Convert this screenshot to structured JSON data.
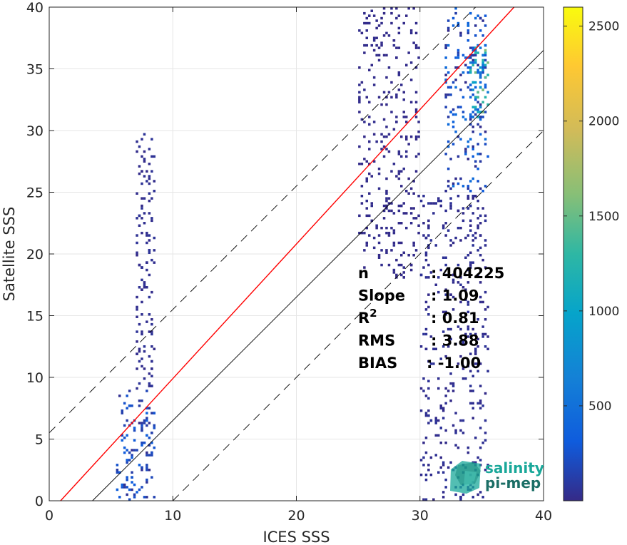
{
  "chart_data": {
    "type": "heatmap",
    "title": "",
    "xlabel": "ICES SSS",
    "ylabel": "Satellite SSS",
    "xlim": [
      0,
      40
    ],
    "ylim": [
      0,
      40
    ],
    "xticks": [
      "0",
      "10",
      "20",
      "30",
      "40"
    ],
    "yticks": [
      "0",
      "5",
      "10",
      "15",
      "20",
      "25",
      "30",
      "35",
      "40"
    ],
    "grid": true,
    "colorbar": {
      "colormap": "parula",
      "min": 0,
      "max": 2600,
      "ticks": [
        "500",
        "1000",
        "1500",
        "2000",
        "2500"
      ],
      "tick_values": [
        500,
        1000,
        1500,
        2000,
        2500
      ]
    },
    "density_clusters": [
      {
        "x_range": [
          5.5,
          8.5
        ],
        "y_range": [
          0,
          9
        ],
        "peak_count": 350
      },
      {
        "x_range": [
          7,
          8.5
        ],
        "y_range": [
          9,
          30
        ],
        "peak_count": 60
      },
      {
        "x_range": [
          32,
          35.5
        ],
        "y_range": [
          25,
          40
        ],
        "peak_count": 500
      },
      {
        "x_range": [
          34,
          35.5
        ],
        "y_range": [
          31,
          37
        ],
        "peak_count": 1600
      },
      {
        "x_range": [
          30,
          35.5
        ],
        "y_range": [
          0,
          25
        ],
        "peak_count": 60
      },
      {
        "x_range": [
          25,
          30
        ],
        "y_range": [
          18,
          40
        ],
        "peak_count": 20
      }
    ],
    "lines": [
      {
        "name": "regression",
        "color": "#ff0000",
        "slope": 1.09,
        "intercept": -1.0
      },
      {
        "name": "identity",
        "color": "#000000",
        "slope": 1,
        "intercept": -3.5
      },
      {
        "name": "upper-bound",
        "color": "#000000",
        "dash": true,
        "slope": 1,
        "intercept": 5.5
      },
      {
        "name": "lower-bound",
        "color": "#000000",
        "dash": true,
        "slope": 1,
        "intercept": -10
      }
    ],
    "stats": [
      {
        "label": "n",
        "value": ": 404225"
      },
      {
        "label": "Slope",
        "value": ": 1.09"
      },
      {
        "label": "R",
        "sup": "2",
        "value": ": 0.81"
      },
      {
        "label": "RMS",
        "value": ": 3.88"
      },
      {
        "label": "BIAS",
        "value": ": -1.00"
      }
    ]
  },
  "logo": {
    "line1": "salinity",
    "line2": "pi-mep",
    "color1": "#1aa89a",
    "color2": "#1b6e66"
  }
}
